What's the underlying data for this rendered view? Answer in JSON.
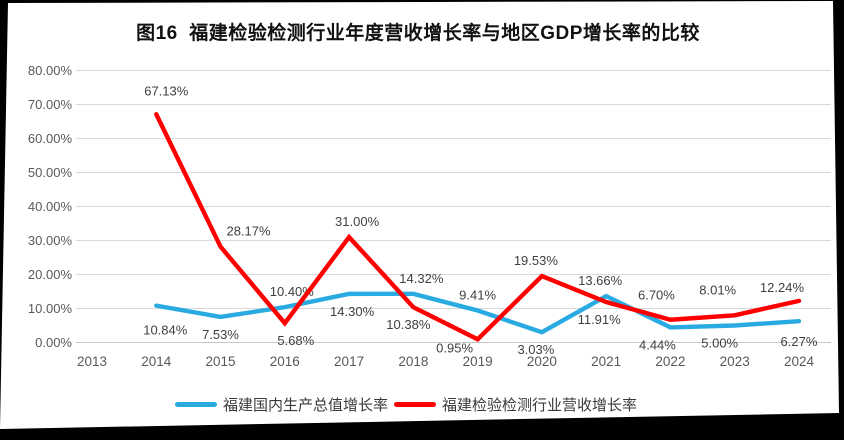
{
  "title": "图16  福建检验检测行业年度营收增长率与地区GDP增长率的比较",
  "colors": {
    "gdp_line": "#29ABE2",
    "industry_line": "#FF0000",
    "grid": "#D9D9D9",
    "zero_axis": "#C8C8C8",
    "axis_text": "#595959",
    "data_label_text": "#3F3F3F",
    "panel_background": "#FFFFFF",
    "screen_background": "#000000"
  },
  "chart_data": {
    "type": "line",
    "title": "图16  福建检验检测行业年度营收增长率与地区GDP增长率的比较",
    "categories": [
      "2013",
      "2014",
      "2015",
      "2016",
      "2017",
      "2018",
      "2019",
      "2020",
      "2021",
      "2022",
      "2023",
      "2024"
    ],
    "yticks": [
      "0.00%",
      "10.00%",
      "20.00%",
      "30.00%",
      "40.00%",
      "50.00%",
      "60.00%",
      "70.00%",
      "80.00%"
    ],
    "ylim": [
      0,
      80
    ],
    "grid": true,
    "legend_position": "bottom",
    "xlabel": "",
    "ylabel": "",
    "series": [
      {
        "name": "福建国内生产总值增长率",
        "color_key": "gdp_line",
        "values": [
          null,
          10.84,
          7.53,
          10.4,
          14.3,
          14.32,
          9.41,
          3.03,
          13.66,
          4.44,
          5.0,
          6.27
        ],
        "labels": [
          "",
          "10.84%",
          "7.53%",
          "10.40%",
          "14.30%",
          "14.32%",
          "9.41%",
          "3.03%",
          "13.66%",
          "4.44%",
          "5.00%",
          "6.27%"
        ],
        "label_side": [
          null,
          "below",
          "below",
          "above",
          "below",
          "above",
          "above",
          "below",
          "above",
          "below",
          "below",
          "below"
        ]
      },
      {
        "name": "福建检验检测行业营收增长率",
        "color_key": "industry_line",
        "values": [
          null,
          67.13,
          28.17,
          5.68,
          31.0,
          10.38,
          0.95,
          19.53,
          11.91,
          6.7,
          8.01,
          12.24
        ],
        "labels": [
          "",
          "67.13%",
          "28.17%",
          "5.68%",
          "31.00%",
          "10.38%",
          "0.95%",
          "19.53%",
          "11.91%",
          "6.70%",
          "8.01%",
          "12.24%"
        ],
        "label_side": [
          null,
          "above",
          "above",
          "below",
          "above",
          "below",
          "below",
          "above",
          "below",
          "above",
          "above",
          "above"
        ]
      }
    ]
  }
}
